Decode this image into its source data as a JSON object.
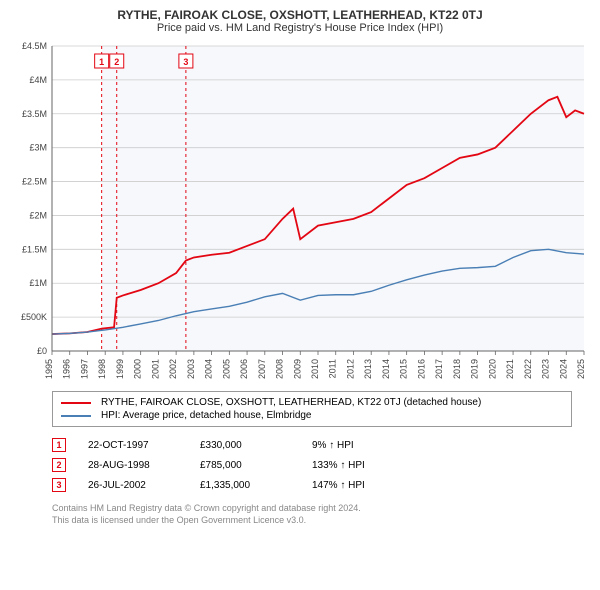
{
  "title": "RYTHE, FAIROAK CLOSE, OXSHOTT, LEATHERHEAD, KT22 0TJ",
  "subtitle": "Price paid vs. HM Land Registry's House Price Index (HPI)",
  "chart": {
    "type": "line",
    "background_color": "#ffffff",
    "shade_color": "#f6f8fb",
    "grid_color": "#cccccc",
    "axis_color": "#666666",
    "x_years": [
      1995,
      1996,
      1997,
      1998,
      1999,
      2000,
      2001,
      2002,
      2003,
      2004,
      2005,
      2006,
      2007,
      2008,
      2009,
      2010,
      2011,
      2012,
      2013,
      2014,
      2015,
      2016,
      2017,
      2018,
      2019,
      2020,
      2021,
      2022,
      2023,
      2024,
      2025
    ],
    "y_ticks": [
      0,
      500000,
      1000000,
      1500000,
      2000000,
      2500000,
      3000000,
      3500000,
      4000000,
      4500000
    ],
    "y_tick_labels": [
      "£0",
      "£500K",
      "£1M",
      "£1.5M",
      "£2M",
      "£2.5M",
      "£3M",
      "£3.5M",
      "£4M",
      "£4.5M"
    ],
    "ylim": [
      0,
      4500000
    ],
    "xlim": [
      1995,
      2025
    ],
    "shade_start_year": 1997.8,
    "label_fontsize": 9,
    "series": [
      {
        "name": "property",
        "color": "#e30613",
        "width": 1.8,
        "points": [
          [
            1995,
            250000
          ],
          [
            1996,
            260000
          ],
          [
            1997,
            280000
          ],
          [
            1997.8,
            330000
          ],
          [
            1998.5,
            350000
          ],
          [
            1998.65,
            785000
          ],
          [
            1999,
            820000
          ],
          [
            2000,
            900000
          ],
          [
            2001,
            1000000
          ],
          [
            2002,
            1150000
          ],
          [
            2002.55,
            1335000
          ],
          [
            2003,
            1380000
          ],
          [
            2004,
            1420000
          ],
          [
            2005,
            1450000
          ],
          [
            2006,
            1550000
          ],
          [
            2007,
            1650000
          ],
          [
            2008,
            1950000
          ],
          [
            2008.6,
            2100000
          ],
          [
            2009,
            1650000
          ],
          [
            2010,
            1850000
          ],
          [
            2011,
            1900000
          ],
          [
            2012,
            1950000
          ],
          [
            2013,
            2050000
          ],
          [
            2014,
            2250000
          ],
          [
            2015,
            2450000
          ],
          [
            2016,
            2550000
          ],
          [
            2017,
            2700000
          ],
          [
            2018,
            2850000
          ],
          [
            2019,
            2900000
          ],
          [
            2020,
            3000000
          ],
          [
            2021,
            3250000
          ],
          [
            2022,
            3500000
          ],
          [
            2023,
            3700000
          ],
          [
            2023.5,
            3750000
          ],
          [
            2024,
            3450000
          ],
          [
            2024.5,
            3550000
          ],
          [
            2025,
            3500000
          ]
        ]
      },
      {
        "name": "hpi",
        "color": "#4a7fb5",
        "width": 1.4,
        "points": [
          [
            1995,
            250000
          ],
          [
            1996,
            260000
          ],
          [
            1997,
            280000
          ],
          [
            1998,
            310000
          ],
          [
            1999,
            350000
          ],
          [
            2000,
            400000
          ],
          [
            2001,
            450000
          ],
          [
            2002,
            520000
          ],
          [
            2003,
            580000
          ],
          [
            2004,
            620000
          ],
          [
            2005,
            660000
          ],
          [
            2006,
            720000
          ],
          [
            2007,
            800000
          ],
          [
            2008,
            850000
          ],
          [
            2009,
            750000
          ],
          [
            2010,
            820000
          ],
          [
            2011,
            830000
          ],
          [
            2012,
            830000
          ],
          [
            2013,
            880000
          ],
          [
            2014,
            970000
          ],
          [
            2015,
            1050000
          ],
          [
            2016,
            1120000
          ],
          [
            2017,
            1180000
          ],
          [
            2018,
            1220000
          ],
          [
            2019,
            1230000
          ],
          [
            2020,
            1250000
          ],
          [
            2021,
            1380000
          ],
          [
            2022,
            1480000
          ],
          [
            2023,
            1500000
          ],
          [
            2024,
            1450000
          ],
          [
            2025,
            1430000
          ]
        ]
      }
    ],
    "markers": [
      {
        "num": "1",
        "year": 1997.8,
        "color": "#e30613",
        "dash": "3,3"
      },
      {
        "num": "2",
        "year": 1998.65,
        "color": "#e30613",
        "dash": "3,3"
      },
      {
        "num": "3",
        "year": 2002.55,
        "color": "#e30613",
        "dash": "3,3"
      }
    ]
  },
  "legend": [
    {
      "color": "#e30613",
      "label": "RYTHE, FAIROAK CLOSE, OXSHOTT, LEATHERHEAD, KT22 0TJ (detached house)"
    },
    {
      "color": "#4a7fb5",
      "label": "HPI: Average price, detached house, Elmbridge"
    }
  ],
  "transactions": [
    {
      "num": "1",
      "date": "22-OCT-1997",
      "price": "£330,000",
      "hpi": "9%  ↑  HPI",
      "color": "#e30613"
    },
    {
      "num": "2",
      "date": "28-AUG-1998",
      "price": "£785,000",
      "hpi": "133%  ↑  HPI",
      "color": "#e30613"
    },
    {
      "num": "3",
      "date": "26-JUL-2002",
      "price": "£1,335,000",
      "hpi": "147%  ↑  HPI",
      "color": "#e30613"
    }
  ],
  "footer_line1": "Contains HM Land Registry data © Crown copyright and database right 2024.",
  "footer_line2": "This data is licensed under the Open Government Licence v3.0."
}
